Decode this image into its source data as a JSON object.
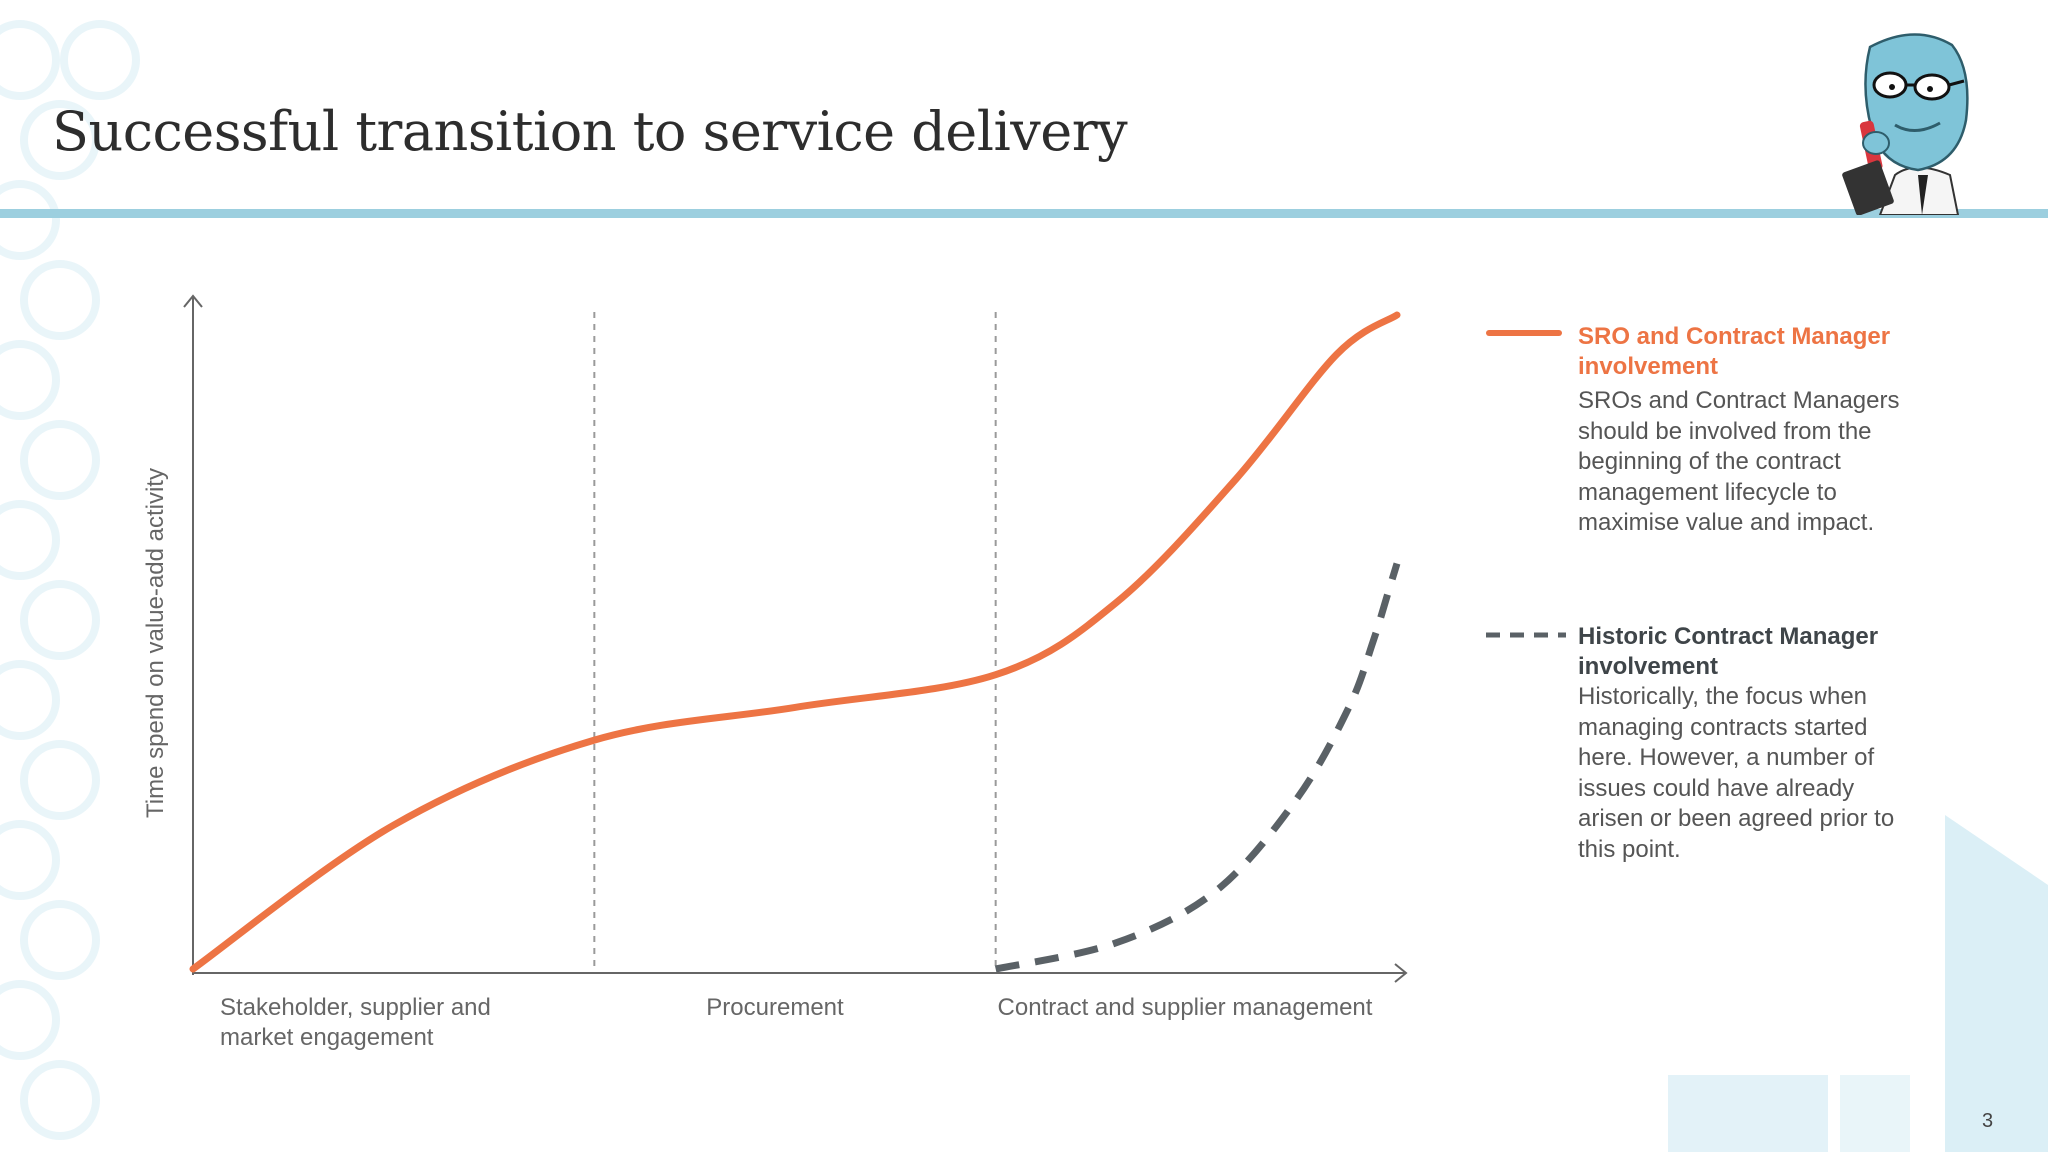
{
  "slide": {
    "title": "Successful transition to service delivery",
    "page_number": "3"
  },
  "colors": {
    "accent_orange": "#ed7444",
    "dash_gray": "#5a6166",
    "title_rule": "#9ccfdf"
  },
  "legend": {
    "solid": {
      "title": "SRO and Contract Manager involvement",
      "description": "SROs and Contract Managers should be involved from the beginning of the contract management lifecycle to maximise value and impact."
    },
    "dashed": {
      "title": "Historic Contract Manager involvement",
      "description": "Historically, the focus when managing contracts started here. However, a number of issues could have already arisen or been agreed prior to this point."
    }
  },
  "mascot": {
    "icon": "cartoon-character-icon"
  },
  "chart_data": {
    "type": "line",
    "ylabel": "Time spend on value-add activity",
    "xlabel": "",
    "phases": [
      "Stakeholder, supplier and market engagement",
      "Procurement",
      "Contract and supplier management"
    ],
    "x_range": [
      0,
      3
    ],
    "y_range": [
      0,
      1
    ],
    "phase_boundaries": [
      1,
      2
    ],
    "series": [
      {
        "name": "SRO and Contract Manager involvement",
        "style": "solid",
        "color": "#ed7444",
        "points": [
          [
            0,
            0
          ],
          [
            0.5,
            0.22
          ],
          [
            1,
            0.35
          ],
          [
            1.5,
            0.4
          ],
          [
            2,
            0.45
          ],
          [
            2.3,
            0.56
          ],
          [
            2.6,
            0.75
          ],
          [
            2.85,
            0.94
          ],
          [
            3,
            1
          ]
        ]
      },
      {
        "name": "Historic Contract Manager involvement",
        "style": "dashed",
        "color": "#5a6166",
        "points": [
          [
            2,
            0
          ],
          [
            2.3,
            0.04
          ],
          [
            2.55,
            0.12
          ],
          [
            2.75,
            0.26
          ],
          [
            2.88,
            0.4
          ],
          [
            2.94,
            0.5
          ],
          [
            2.98,
            0.58
          ],
          [
            3,
            0.62
          ]
        ]
      }
    ]
  }
}
